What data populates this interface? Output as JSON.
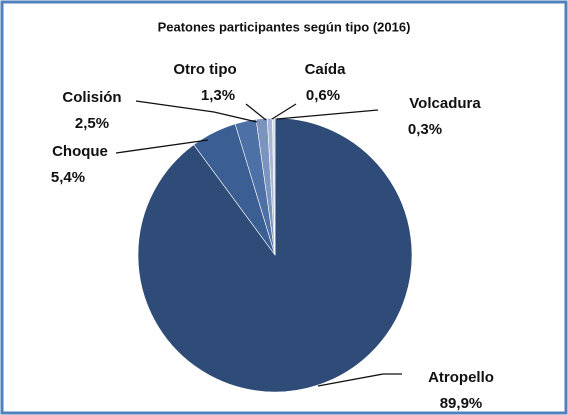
{
  "chart_data": {
    "type": "pie",
    "title": "Peatones participantes según tipo (2016)",
    "categories": [
      "Atropello",
      "Choque",
      "Colisión",
      "Otro tipo",
      "Caída",
      "Volcadura"
    ],
    "values": [
      89.9,
      5.4,
      2.5,
      1.3,
      0.6,
      0.3
    ],
    "value_labels": [
      "89,9%",
      "5,4%",
      "2,5%",
      "1,3%",
      "0,6%",
      "0,3%"
    ],
    "colors": [
      "#2f4b77",
      "#3b5f93",
      "#4d71a6",
      "#7b94bd",
      "#a8b8d4",
      "#d3dbea"
    ]
  }
}
